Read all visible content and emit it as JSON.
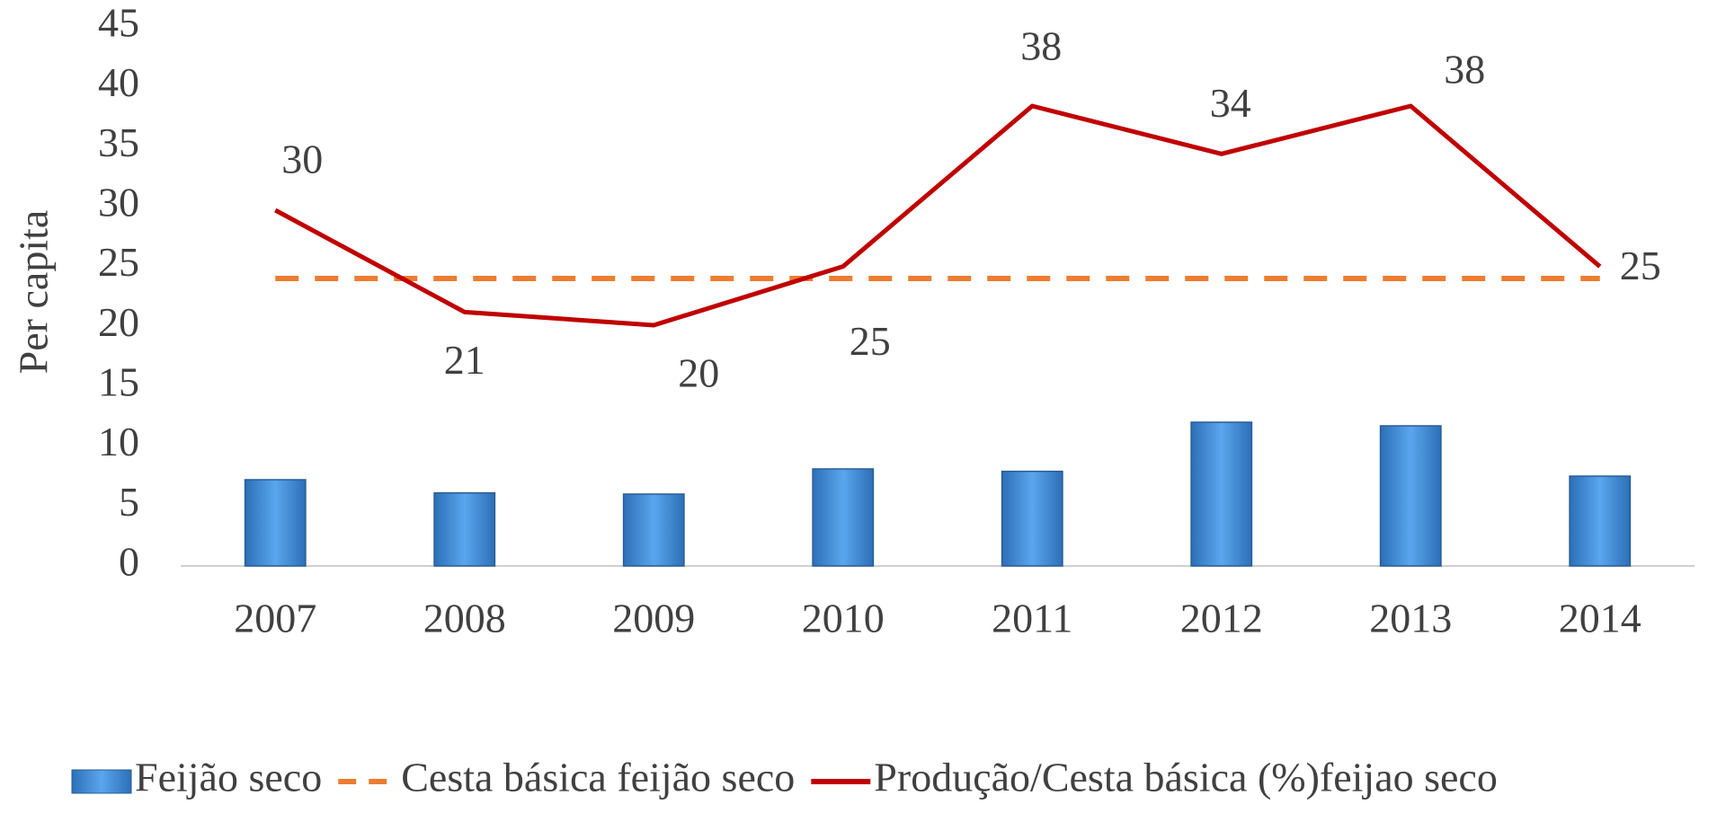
{
  "chart_data": {
    "type": "combo",
    "y_label": "Per capita",
    "categories": [
      "2007",
      "2008",
      "2009",
      "2010",
      "2011",
      "2012",
      "2013",
      "2014"
    ],
    "series": [
      {
        "name": "Feijão seco",
        "type": "bar",
        "color": "#3a8ad6",
        "values": [
          7.2,
          6.1,
          6.0,
          8.1,
          7.9,
          12.0,
          11.7,
          7.5
        ]
      },
      {
        "name": "Cesta básica feijão seco",
        "type": "dashed-line",
        "color": "#ed7d31",
        "values": [
          24,
          24,
          24,
          24,
          24,
          24,
          24,
          24
        ]
      },
      {
        "name": "Produção/Cesta básica (%)feijao seco",
        "type": "line",
        "color": "#c00000",
        "values": [
          29.7,
          21.2,
          20.1,
          25.0,
          38.4,
          34.4,
          38.4,
          25.0
        ],
        "value_labels": [
          "30",
          "21",
          "20",
          "25",
          "38",
          "34",
          "38",
          "25"
        ]
      }
    ],
    "ylim": [
      0,
      45
    ],
    "yticks": [
      0,
      5,
      10,
      15,
      20,
      25,
      30,
      35,
      40,
      45
    ],
    "legend": "bottom"
  }
}
